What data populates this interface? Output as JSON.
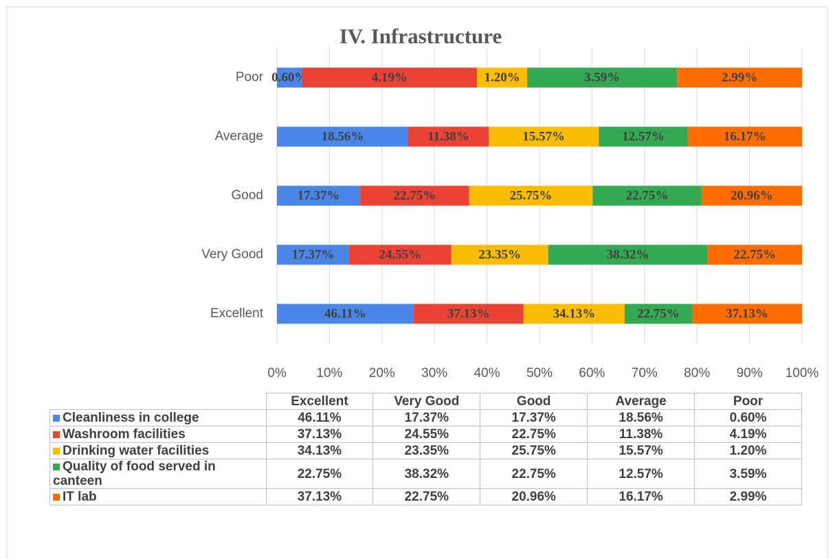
{
  "chart_data": {
    "type": "bar",
    "orientation": "horizontal",
    "stacking": "percent",
    "title": "IV. Infrastructure",
    "categories": [
      "Excellent",
      "Very Good",
      "Good",
      "Average",
      "Poor"
    ],
    "series": [
      {
        "name": "Cleanliness in college",
        "color": "#4a86e8",
        "values": [
          46.11,
          17.37,
          17.37,
          18.56,
          0.6
        ],
        "value_labels": [
          "46.11%",
          "17.37%",
          "17.37%",
          "18.56%",
          "0.60%"
        ]
      },
      {
        "name": "Washroom facilities",
        "color": "#ea4335",
        "values": [
          37.13,
          24.55,
          22.75,
          11.38,
          4.19
        ],
        "value_labels": [
          "37.13%",
          "24.55%",
          "22.75%",
          "11.38%",
          "4.19%"
        ]
      },
      {
        "name": "Drinking water facilities",
        "color": "#fbbc04",
        "values": [
          34.13,
          23.35,
          25.75,
          15.57,
          1.2
        ],
        "value_labels": [
          "34.13%",
          "23.35%",
          "25.75%",
          "15.57%",
          "1.20%"
        ]
      },
      {
        "name": "Quality of food served in canteen",
        "color": "#34a853",
        "values": [
          22.75,
          38.32,
          22.75,
          12.57,
          3.59
        ],
        "value_labels": [
          "22.75%",
          "38.32%",
          "22.75%",
          "12.57%",
          "3.59%"
        ]
      },
      {
        "name": "IT lab",
        "color": "#ff6d01",
        "values": [
          37.13,
          22.75,
          20.96,
          16.17,
          2.99
        ],
        "value_labels": [
          "37.13%",
          "22.75%",
          "20.96%",
          "16.17%",
          "2.99%"
        ]
      }
    ],
    "xlim": [
      0,
      100
    ],
    "xticks": [
      {
        "value": 0,
        "label": "0%"
      },
      {
        "value": 10,
        "label": "10%"
      },
      {
        "value": 20,
        "label": "20%"
      },
      {
        "value": 30,
        "label": "30%"
      },
      {
        "value": 40,
        "label": "40%"
      },
      {
        "value": 50,
        "label": "50%"
      },
      {
        "value": 60,
        "label": "60%"
      },
      {
        "value": 70,
        "label": "70%"
      },
      {
        "value": 80,
        "label": "80%"
      },
      {
        "value": 90,
        "label": "90%"
      },
      {
        "value": 100,
        "label": "100%"
      }
    ],
    "grid": true,
    "data_table": true
  }
}
